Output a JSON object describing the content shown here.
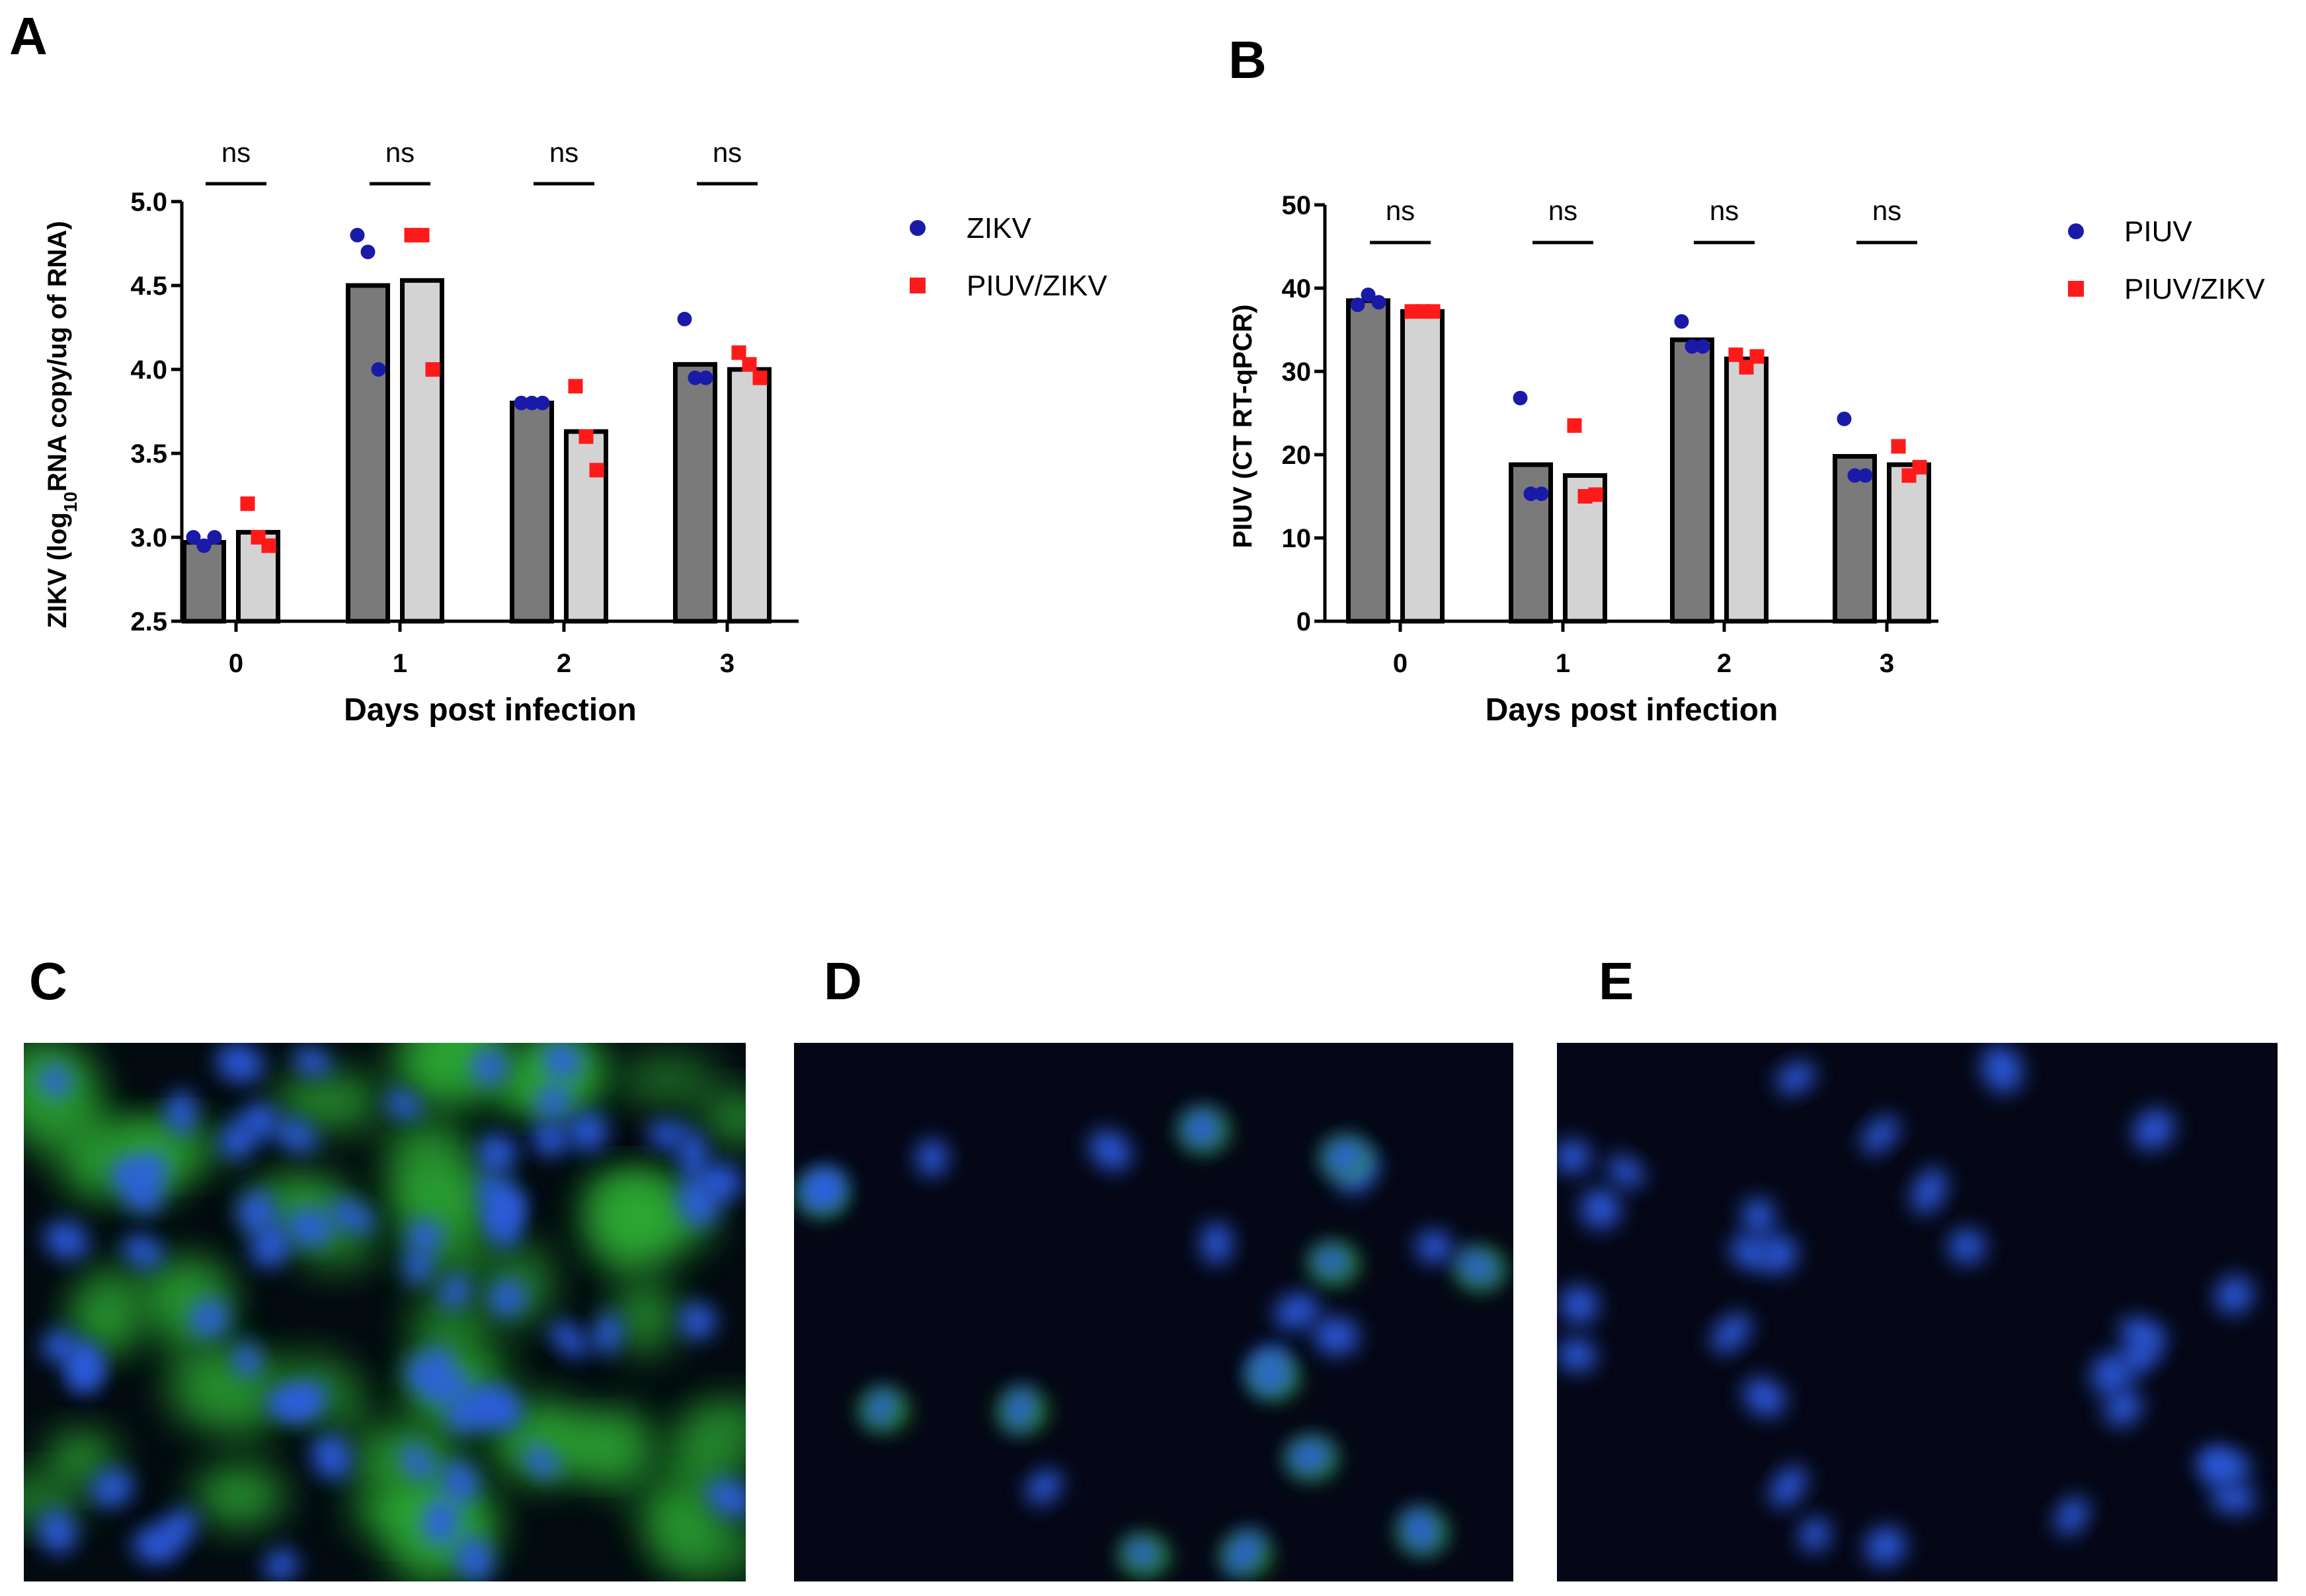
{
  "chart_data": [
    {
      "panel": "A",
      "type": "bar",
      "xlabel": "Days post infection",
      "ylabel_parts": [
        "ZIKV (log",
        "10",
        "RNA copy/ug of RNA)"
      ],
      "categories": [
        "0",
        "1",
        "2",
        "3"
      ],
      "ylim": [
        2.5,
        5.0
      ],
      "yticks": [
        "2.5",
        "3.0",
        "3.5",
        "4.0",
        "4.5",
        "5.0"
      ],
      "yticks_values": [
        2.5,
        3.0,
        3.5,
        4.0,
        4.5,
        5.0
      ],
      "series": [
        {
          "name": "ZIKV",
          "bar_color": "#7a7a7a",
          "point_color": "#1a1aa8",
          "marker": "circle",
          "values": [
            2.97,
            4.5,
            3.8,
            4.03
          ],
          "points": [
            [
              3.0,
              2.95,
              3.0
            ],
            [
              4.8,
              4.7,
              4.0
            ],
            [
              3.8,
              3.8,
              3.8
            ],
            [
              4.3,
              3.95,
              3.95
            ]
          ]
        },
        {
          "name": "PIUV/ZIKV",
          "bar_color": "#d3d3d3",
          "point_color": "#ff1a1a",
          "marker": "square",
          "values": [
            3.03,
            4.53,
            3.63,
            4.0
          ],
          "points": [
            [
              3.2,
              3.0,
              2.95
            ],
            [
              4.8,
              4.8,
              4.0
            ],
            [
              3.9,
              3.6,
              3.4
            ],
            [
              4.1,
              4.03,
              3.95
            ]
          ]
        }
      ],
      "significance": [
        "ns",
        "ns",
        "ns",
        "ns"
      ],
      "legend": [
        "ZIKV",
        "PIUV/ZIKV"
      ],
      "legend_position": "top-right"
    },
    {
      "panel": "B",
      "type": "bar",
      "xlabel": "Days post infection",
      "ylabel_parts": [
        "PIUV (CT RT-qPCR)"
      ],
      "categories": [
        "0",
        "1",
        "2",
        "3"
      ],
      "ylim": [
        0,
        50
      ],
      "yticks": [
        "0",
        "10",
        "20",
        "30",
        "40",
        "50"
      ],
      "yticks_values": [
        0,
        10,
        20,
        30,
        40,
        50
      ],
      "series": [
        {
          "name": "PIUV",
          "bar_color": "#7a7a7a",
          "point_color": "#1a1aa8",
          "marker": "circle",
          "values": [
            38.5,
            18.8,
            33.8,
            19.8
          ],
          "points": [
            [
              38.0,
              39.2,
              38.3
            ],
            [
              26.8,
              15.3,
              15.3
            ],
            [
              36.0,
              33.0,
              33.0
            ],
            [
              24.3,
              17.5,
              17.5
            ]
          ]
        },
        {
          "name": "PIUV/ZIKV",
          "bar_color": "#d3d3d3",
          "point_color": "#ff1a1a",
          "marker": "square",
          "values": [
            37.2,
            17.5,
            31.5,
            18.8
          ],
          "points": [
            [
              37.2,
              37.2,
              37.2
            ],
            [
              23.5,
              15.0,
              15.2
            ],
            [
              32.0,
              30.5,
              31.8
            ],
            [
              21.0,
              17.5,
              18.5
            ]
          ]
        }
      ],
      "significance": [
        "ns",
        "ns",
        "ns",
        "ns"
      ],
      "legend": [
        "PIUV",
        "PIUV/ZIKV"
      ],
      "legend_position": "top-right"
    }
  ],
  "micrographs": [
    {
      "panel": "C",
      "background": "#030a10",
      "cells": "dense",
      "green_signal": "strong"
    },
    {
      "panel": "D",
      "background": "#050716",
      "cells": "sparse",
      "green_signal": "weak"
    },
    {
      "panel": "E",
      "background": "#050716",
      "cells": "sparse",
      "green_signal": "none"
    }
  ],
  "colors": {
    "nucleus_blue": "#2f5fe8",
    "cytoplasm_green": "#2fae35"
  }
}
